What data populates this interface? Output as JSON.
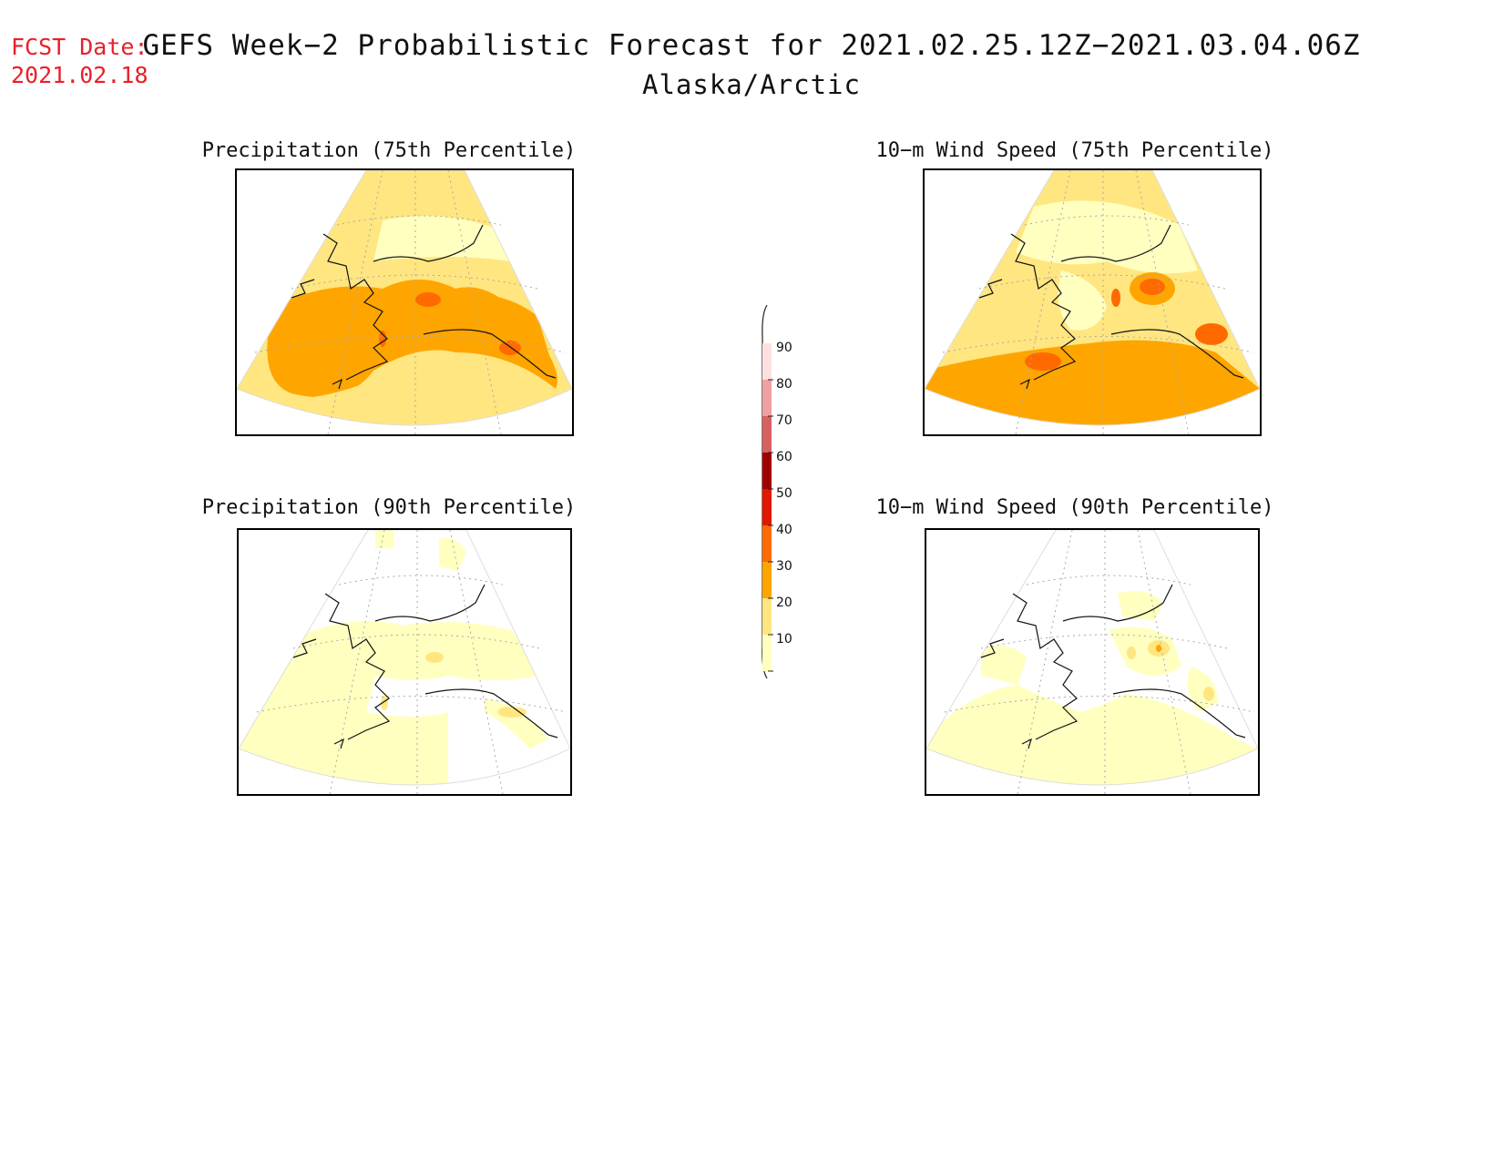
{
  "header": {
    "fcst_label": "FCST Date:",
    "fcst_date": "2021.02.18",
    "title": "GEFS Week−2 Probabilistic Forecast for 2021.02.25.12Z−2021.03.04.06Z",
    "region": "Alaska/Arctic"
  },
  "panels": [
    {
      "id": "precip-75",
      "title": "Precipitation (75th Percentile)"
    },
    {
      "id": "wind-75",
      "title": "10−m Wind Speed (75th Percentile)"
    },
    {
      "id": "precip-90",
      "title": "Precipitation (90th Percentile)"
    },
    {
      "id": "wind-90",
      "title": "10−m Wind Speed (90th Percentile)"
    }
  ],
  "colorbar": {
    "levels": [
      "10",
      "20",
      "30",
      "40",
      "50",
      "60",
      "70",
      "80",
      "90"
    ],
    "colors": [
      "#ffffc0",
      "#ffe680",
      "#ffa500",
      "#ff6a00",
      "#e01800",
      "#a00000",
      "#d86060",
      "#f0a0a0",
      "#ffe0e0"
    ]
  }
}
